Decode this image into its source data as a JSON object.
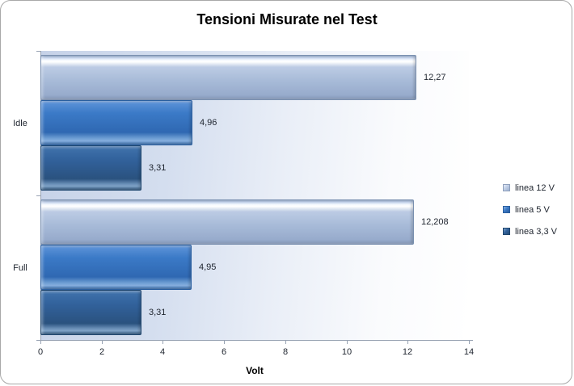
{
  "title": "Tensioni Misurate nel Test",
  "chart_data": {
    "type": "bar",
    "orientation": "horizontal",
    "title": "Tensioni Misurate nel Test",
    "xlabel": "Volt",
    "categories": [
      "Idle",
      "Full"
    ],
    "series": [
      {
        "name": "linea 12 V",
        "values": [
          12.27,
          12.208
        ],
        "labels": [
          "12,27",
          "12,208"
        ],
        "color": "#a9bcd9"
      },
      {
        "name": "linea 5 V",
        "values": [
          4.96,
          4.95
        ],
        "labels": [
          "4,96",
          "4,95"
        ],
        "color": "#3374c0"
      },
      {
        "name": "linea 3,3 V",
        "values": [
          3.31,
          3.31
        ],
        "labels": [
          "3,31",
          "3,31"
        ],
        "color": "#2d5c92"
      }
    ],
    "xlim": [
      0,
      14
    ],
    "x_ticks": [
      "0",
      "2",
      "4",
      "6",
      "8",
      "10",
      "12",
      "14"
    ],
    "legend_position": "right",
    "grid": false
  },
  "colors": {
    "plot_bg_left": "#c6d2e8",
    "plot_bg_right": "#ffffff",
    "axis": "#98a3b3"
  }
}
